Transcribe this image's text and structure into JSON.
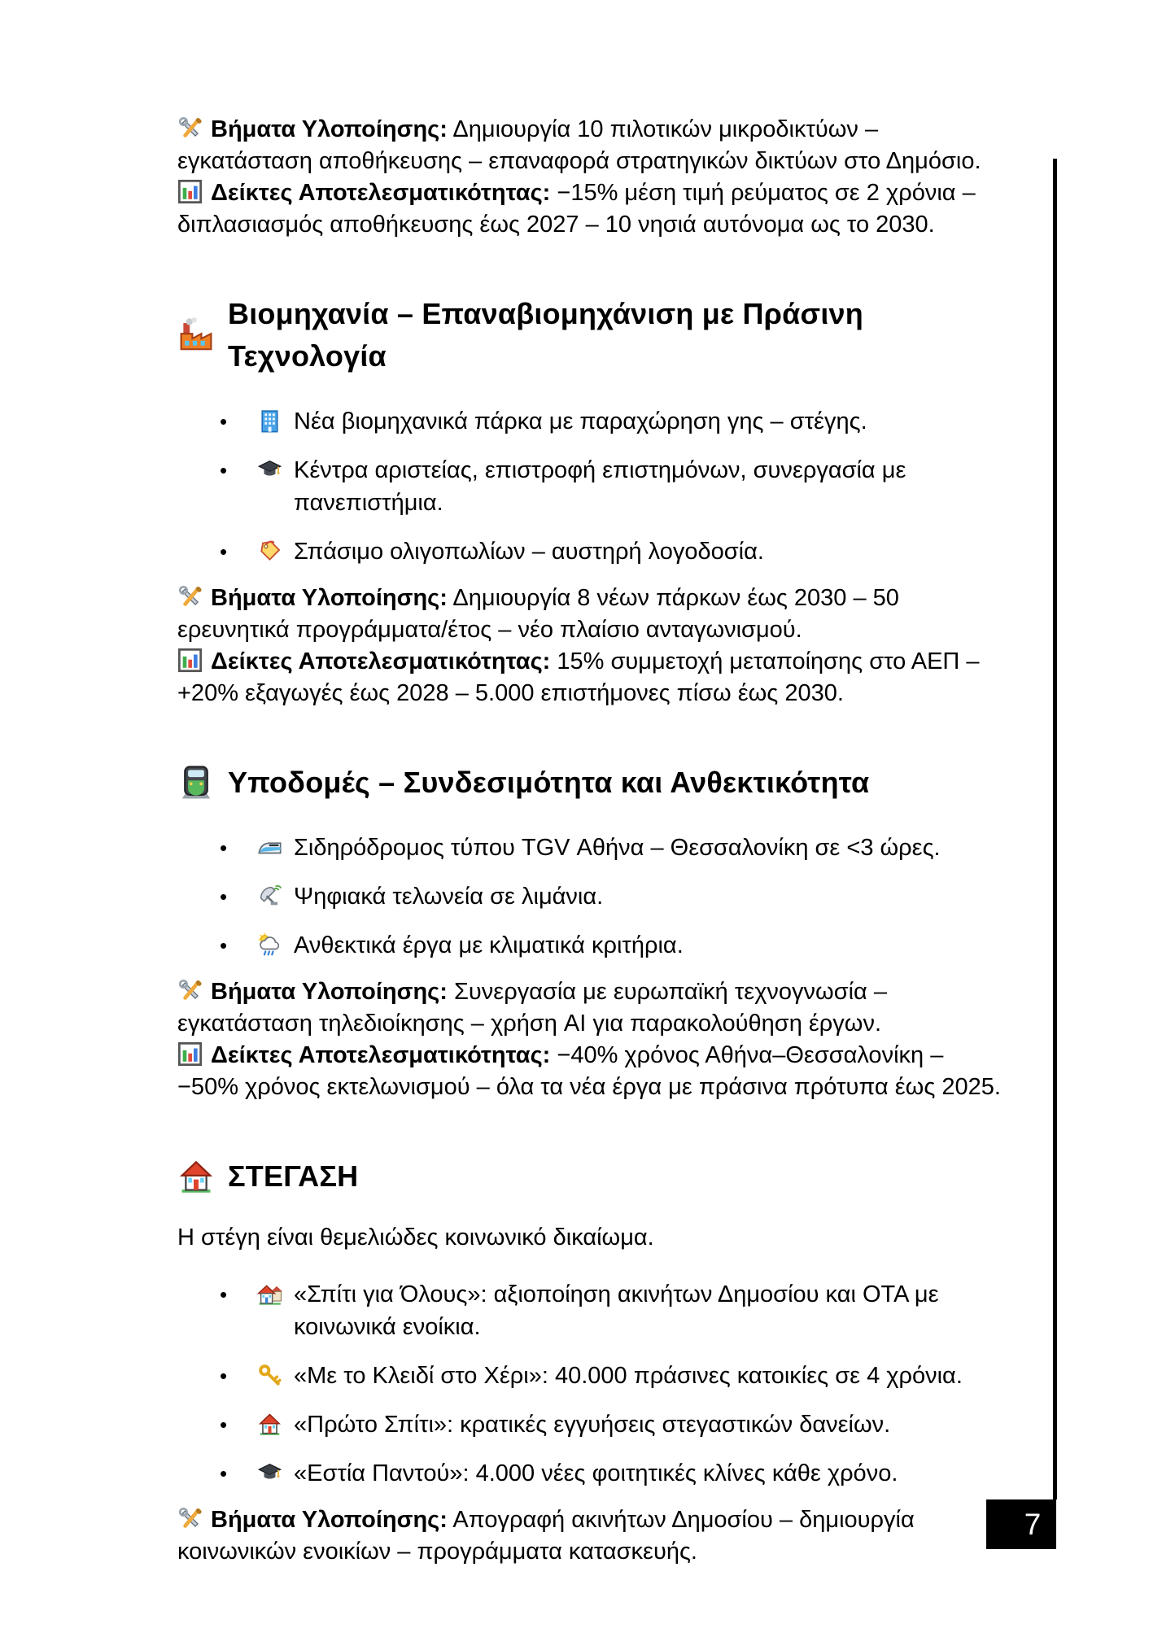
{
  "page_number": "7",
  "colors": {
    "page_bg": "#ffffff",
    "text": "#000000",
    "badge_bg": "#000000",
    "badge_text": "#ffffff"
  },
  "labels": {
    "steps": "Βήματα Υλοποίησης:",
    "kpis": "Δείκτες Αποτελεσματικότητας:"
  },
  "sections": {
    "energy": {
      "steps": "Δημιουργία 10 πιλοτικών μικροδικτύων – εγκατάσταση αποθήκευσης – επαναφορά στρατηγικών δικτύων στο Δημόσιο.",
      "kpis": "−15% μέση τιμή ρεύματος σε 2 χρόνια – διπλασιασμός αποθήκευσης έως 2027 – 10 νησιά αυτόνομα ως το 2030."
    },
    "industry": {
      "title": "Βιομηχανία – Επαναβιομηχάνιση με Πράσινη Τεχνολογία",
      "bullets": [
        {
          "icon": "office-building-icon",
          "text": "Νέα βιομηχανικά πάρκα με παραχώρηση γης – στέγης."
        },
        {
          "icon": "graduation-cap-icon",
          "text": "Κέντρα αριστείας, επιστροφή επιστημόνων, συνεργασία με πανεπιστήμια."
        },
        {
          "icon": "label-tag-icon",
          "text": "Σπάσιμο ολιγοπωλίων – αυστηρή λογοδοσία."
        }
      ],
      "steps": "Δημιουργία 8 νέων πάρκων έως 2030 – 50 ερευνητικά προγράμματα/έτος – νέο πλαίσιο ανταγωνισμού.",
      "kpis": "15% συμμετοχή μεταποίησης στο ΑΕΠ – +20% εξαγωγές έως 2028 – 5.000 επιστήμονες πίσω έως 2030."
    },
    "infrastructure": {
      "title": "Υποδομές – Συνδεσιμότητα και Ανθεκτικότητα",
      "bullets": [
        {
          "icon": "high-speed-train-icon",
          "text": "Σιδηρόδρομος τύπου TGV Αθήνα – Θεσσαλονίκη σε <3 ώρες."
        },
        {
          "icon": "satellite-antenna-icon",
          "text": "Ψηφιακά τελωνεία σε λιμάνια."
        },
        {
          "icon": "sun-rain-cloud-icon",
          "text": "Ανθεκτικά έργα με κλιματικά κριτήρια."
        }
      ],
      "steps": "Συνεργασία με ευρωπαϊκή τεχνογνωσία – εγκατάσταση τηλεδιοίκησης – χρήση AI για παρακολούθηση έργων.",
      "kpis": "−40% χρόνος Αθήνα–Θεσσαλονίκη – −50% χρόνος εκτελωνισμού – όλα τα νέα έργα με πράσινα πρότυπα έως 2025."
    },
    "housing": {
      "title": "ΣΤΕΓΑΣΗ",
      "intro": "Η στέγη είναι θεμελιώδες κοινωνικό δικαίωμα.",
      "bullets": [
        {
          "icon": "houses-icon",
          "text": "«Σπίτι για Όλους»: αξιοποίηση ακινήτων Δημοσίου και ΟΤΑ με κοινωνικά ενοίκια."
        },
        {
          "icon": "key-icon",
          "text": "«Με το Κλειδί στο Χέρι»: 40.000 πράσινες κατοικίες σε 4 χρόνια."
        },
        {
          "icon": "house-icon",
          "text": "«Πρώτο Σπίτι»: κρατικές εγγυήσεις στεγαστικών δανείων."
        },
        {
          "icon": "graduation-cap-icon",
          "text": "«Εστία Παντού»: 4.000 νέες φοιτητικές κλίνες κάθε χρόνο."
        }
      ],
      "steps": "Απογραφή ακινήτων Δημοσίου – δημιουργία κοινωνικών ενοικίων – προγράμματα κατασκευής."
    }
  }
}
